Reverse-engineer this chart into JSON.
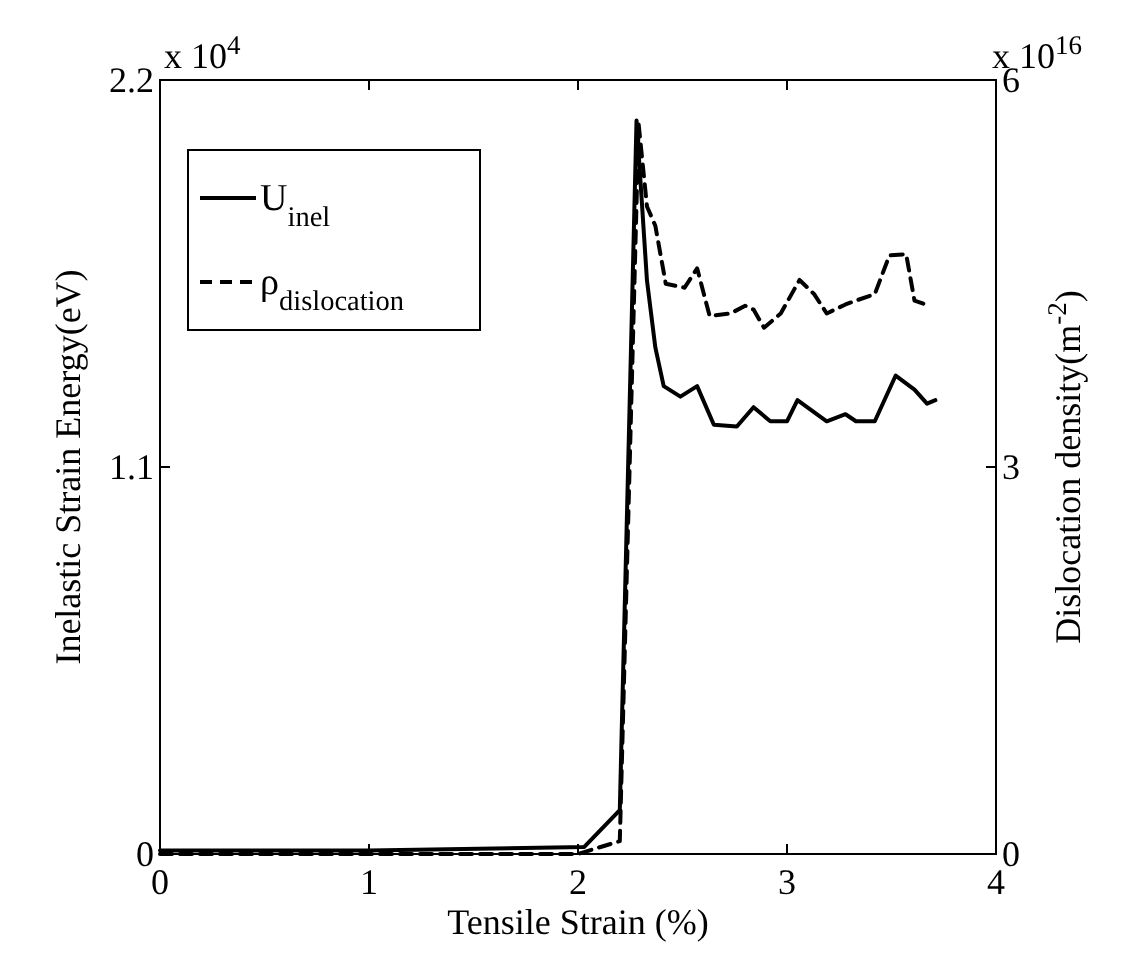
{
  "chart_data": {
    "type": "line",
    "xlabel": "Tensile Strain (%)",
    "ylabel": "Inelastic Strain Energy(eV)",
    "y2label": "Dislocation density(m$^{-2}$)",
    "annotations": [
      "x 10$^{4}$",
      "x 10$^{16}$"
    ],
    "xlim": [
      0,
      4
    ],
    "xticks": [
      0,
      1,
      2,
      3,
      4
    ],
    "ylim": [
      0,
      2.2
    ],
    "yticks": [
      0,
      1.1,
      2.2
    ],
    "y2lim": [
      0,
      6
    ],
    "y2ticks": [
      0,
      3,
      6
    ],
    "grid": false,
    "legend": "top left",
    "marker": "none",
    "series": [
      {
        "name": "U$_{inel}$",
        "color": "#000000",
        "line_style": "solid",
        "x": [
          0,
          1,
          2.03,
          2.2,
          2.28,
          2.33,
          2.37,
          2.41,
          2.49,
          2.57,
          2.65,
          2.76,
          2.84,
          2.92,
          3.0,
          3.05,
          3.19,
          3.28,
          3.33,
          3.42,
          3.52,
          3.61,
          3.67,
          3.71
        ],
        "values": [
          0.01,
          0.01,
          0.02,
          0.125,
          2.085,
          1.63,
          1.44,
          1.33,
          1.3,
          1.33,
          1.22,
          1.215,
          1.27,
          1.23,
          1.23,
          1.29,
          1.23,
          1.25,
          1.23,
          1.23,
          1.36,
          1.32,
          1.28,
          1.29
        ]
      },
      {
        "name": "ρ$_{dislocation}$",
        "color": "#000000",
        "line_style": "dashed",
        "axis": "y2",
        "x": [
          0,
          1,
          2.0,
          2.2,
          2.29,
          2.33,
          2.37,
          2.4,
          2.42,
          2.51,
          2.57,
          2.63,
          2.73,
          2.8,
          2.84,
          2.89,
          2.97,
          3.06,
          3.13,
          3.19,
          3.28,
          3.33,
          3.42,
          3.49,
          3.57,
          3.61,
          3.68
        ],
        "values": [
          0,
          0,
          0,
          0.1,
          5.66,
          5.02,
          4.87,
          4.6,
          4.42,
          4.39,
          4.54,
          4.17,
          4.19,
          4.25,
          4.22,
          4.08,
          4.19,
          4.45,
          4.34,
          4.19,
          4.26,
          4.29,
          4.34,
          4.64,
          4.65,
          4.29,
          4.25
        ]
      }
    ]
  }
}
